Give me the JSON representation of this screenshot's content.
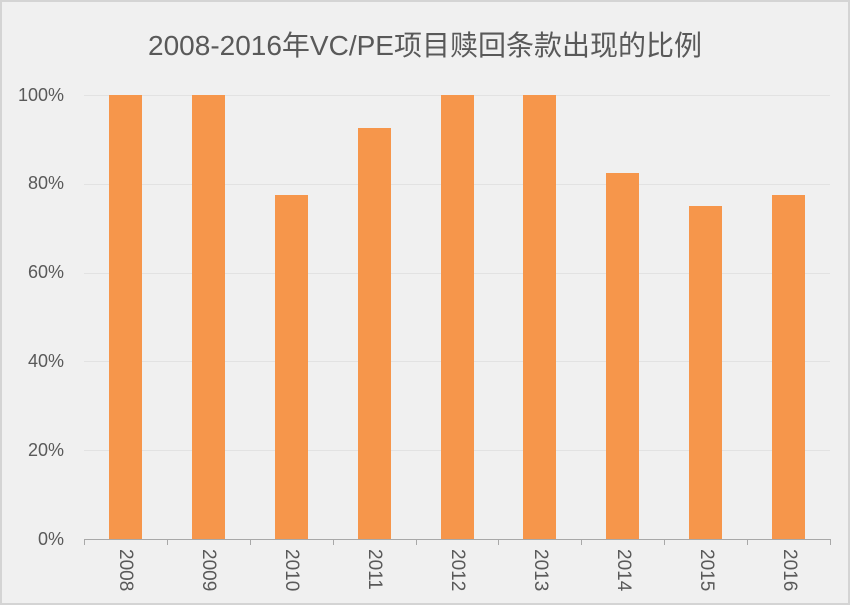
{
  "page": {
    "background_color": "#F0F0F0",
    "border_color": "#D4D4D4"
  },
  "chart_data": {
    "type": "bar",
    "title": "2008-2016年VC/PE项目赎回条款出现的比例",
    "categories": [
      "2008",
      "2009",
      "2010",
      "2011",
      "2012",
      "2013",
      "2014",
      "2015",
      "2016"
    ],
    "values": [
      100,
      100,
      77.5,
      92.5,
      100,
      100,
      82.5,
      75,
      77.5
    ],
    "unit": "%",
    "xlabel": "",
    "ylabel": "",
    "ylim": [
      0,
      100
    ],
    "yticks": [
      0,
      20,
      40,
      60,
      80,
      100
    ],
    "ytick_labels": [
      "0%",
      "20%",
      "40%",
      "60%",
      "80%",
      "100%"
    ],
    "grid": true,
    "legend": "none",
    "bar_color": "#F6964B",
    "gridline_color": "#E2E2E2",
    "axis_color": "#A8A8A8",
    "label_color": "#595959",
    "title_color": "#595959"
  }
}
